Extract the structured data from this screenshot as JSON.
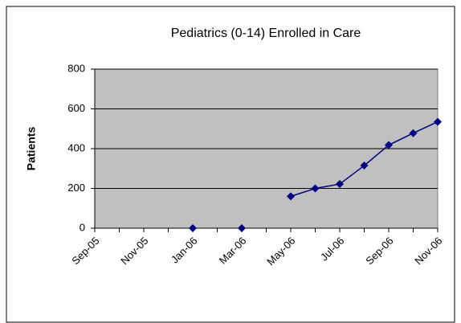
{
  "chart_data": {
    "type": "line",
    "title": "Pediatrics (0-14) Enrolled in Care",
    "y_label": "Patients",
    "categories": [
      "Sep-05",
      null,
      "Nov-05",
      null,
      "Jan-06",
      null,
      "Mar-06",
      null,
      "May-06",
      null,
      "Jul-06",
      null,
      "Sep-06",
      null,
      "Nov-06"
    ],
    "series": [
      {
        "name": "Patients",
        "color": "#000080",
        "values": [
          null,
          null,
          null,
          null,
          0,
          null,
          0,
          null,
          160,
          200,
          222,
          315,
          418,
          478,
          535
        ]
      }
    ],
    "ylim": [
      0,
      800
    ],
    "yticks": [
      0,
      200,
      400,
      600,
      800
    ],
    "grid": true,
    "plot_color": "#c0c0c0"
  }
}
